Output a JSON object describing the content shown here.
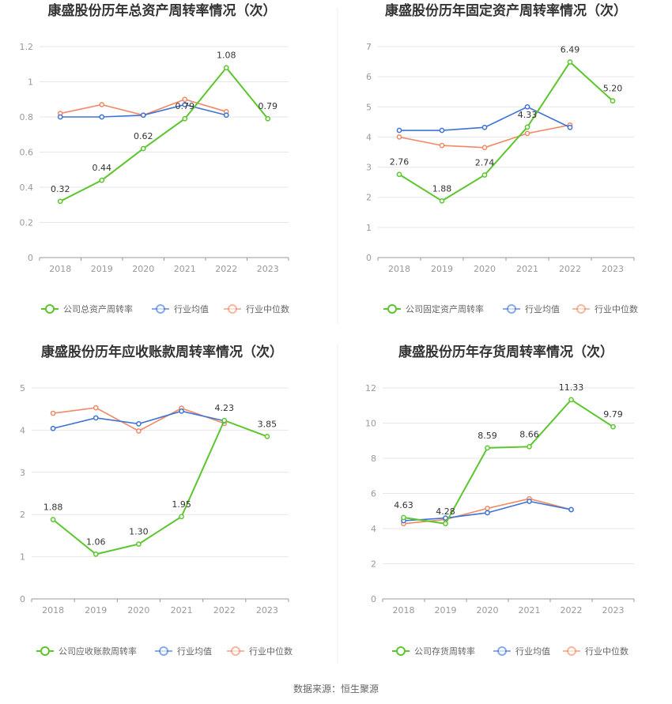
{
  "colors": {
    "company": "#5cc62e",
    "industry_avg": "#3e72d6",
    "industry_median": "#f08a64"
  },
  "legend_labels": {
    "industry_avg": "行业均值",
    "industry_median": "行业中位数"
  },
  "footer": "数据来源：恒生聚源",
  "chart_data": [
    {
      "type": "line",
      "title": "康盛股份历年总资产周转率情况（次）",
      "categories": [
        "2018",
        "2019",
        "2020",
        "2021",
        "2022",
        "2023"
      ],
      "ylim": [
        0,
        1.2
      ],
      "yticks": [
        "0",
        "0.2",
        "0.4",
        "0.6",
        "0.8",
        "1",
        "1.2"
      ],
      "grid": true,
      "legend_position": "bottom",
      "series": [
        {
          "name": "公司总资产周转率",
          "key": "company",
          "values": [
            0.32,
            0.44,
            0.62,
            0.79,
            1.08,
            0.79
          ],
          "labels": [
            "0.32",
            "0.44",
            "0.62",
            "0.79",
            "1.08",
            "0.79"
          ]
        },
        {
          "name": "行业均值",
          "key": "industry_avg",
          "values": [
            0.8,
            0.8,
            0.81,
            0.87,
            0.81,
            null
          ]
        },
        {
          "name": "行业中位数",
          "key": "industry_median",
          "values": [
            0.82,
            0.87,
            0.81,
            0.9,
            0.83,
            null
          ]
        }
      ]
    },
    {
      "type": "line",
      "title": "康盛股份历年固定资产周转率情况（次）",
      "categories": [
        "2018",
        "2019",
        "2020",
        "2021",
        "2022",
        "2023"
      ],
      "ylim": [
        0,
        7
      ],
      "yticks": [
        "0",
        "1",
        "2",
        "3",
        "4",
        "5",
        "6",
        "7"
      ],
      "grid": true,
      "legend_position": "bottom",
      "series": [
        {
          "name": "公司固定资产周转率",
          "key": "company",
          "values": [
            2.76,
            1.88,
            2.74,
            4.33,
            6.49,
            5.2
          ],
          "labels": [
            "2.76",
            "1.88",
            "2.74",
            "4.33",
            "6.49",
            "5.20"
          ]
        },
        {
          "name": "行业均值",
          "key": "industry_avg",
          "values": [
            4.22,
            4.22,
            4.32,
            5.0,
            4.32,
            null
          ]
        },
        {
          "name": "行业中位数",
          "key": "industry_median",
          "values": [
            4.0,
            3.72,
            3.65,
            4.12,
            4.4,
            null
          ]
        }
      ]
    },
    {
      "type": "line",
      "title": "康盛股份历年应收账款周转率情况（次）",
      "categories": [
        "2018",
        "2019",
        "2020",
        "2021",
        "2022",
        "2023"
      ],
      "ylim": [
        0,
        5
      ],
      "yticks": [
        "0",
        "1",
        "2",
        "3",
        "4",
        "5"
      ],
      "grid": true,
      "legend_position": "bottom",
      "series": [
        {
          "name": "公司应收账款周转率",
          "key": "company",
          "values": [
            1.88,
            1.06,
            1.3,
            1.95,
            4.23,
            3.85
          ],
          "labels": [
            "1.88",
            "1.06",
            "1.30",
            "1.95",
            "4.23",
            "3.85"
          ]
        },
        {
          "name": "行业均值",
          "key": "industry_avg",
          "values": [
            4.04,
            4.29,
            4.15,
            4.45,
            4.22,
            null
          ]
        },
        {
          "name": "行业中位数",
          "key": "industry_median",
          "values": [
            4.4,
            4.53,
            3.98,
            4.52,
            4.16,
            null
          ]
        }
      ]
    },
    {
      "type": "line",
      "title": "康盛股份历年存货周转率情况（次）",
      "categories": [
        "2018",
        "2019",
        "2020",
        "2021",
        "2022",
        "2023"
      ],
      "ylim": [
        0,
        12
      ],
      "yticks": [
        "0",
        "2",
        "4",
        "6",
        "8",
        "10",
        "12"
      ],
      "grid": true,
      "legend_position": "bottom",
      "series": [
        {
          "name": "公司存货周转率",
          "key": "company",
          "values": [
            4.63,
            4.28,
            8.59,
            8.66,
            11.33,
            9.79
          ],
          "labels": [
            "4.63",
            "4.28",
            "8.59",
            "8.66",
            "11.33",
            "9.79"
          ]
        },
        {
          "name": "行业均值",
          "key": "industry_avg",
          "values": [
            4.45,
            4.6,
            4.9,
            5.55,
            5.08,
            null
          ]
        },
        {
          "name": "行业中位数",
          "key": "industry_median",
          "values": [
            4.28,
            4.52,
            5.15,
            5.7,
            5.08,
            null
          ]
        }
      ]
    }
  ]
}
